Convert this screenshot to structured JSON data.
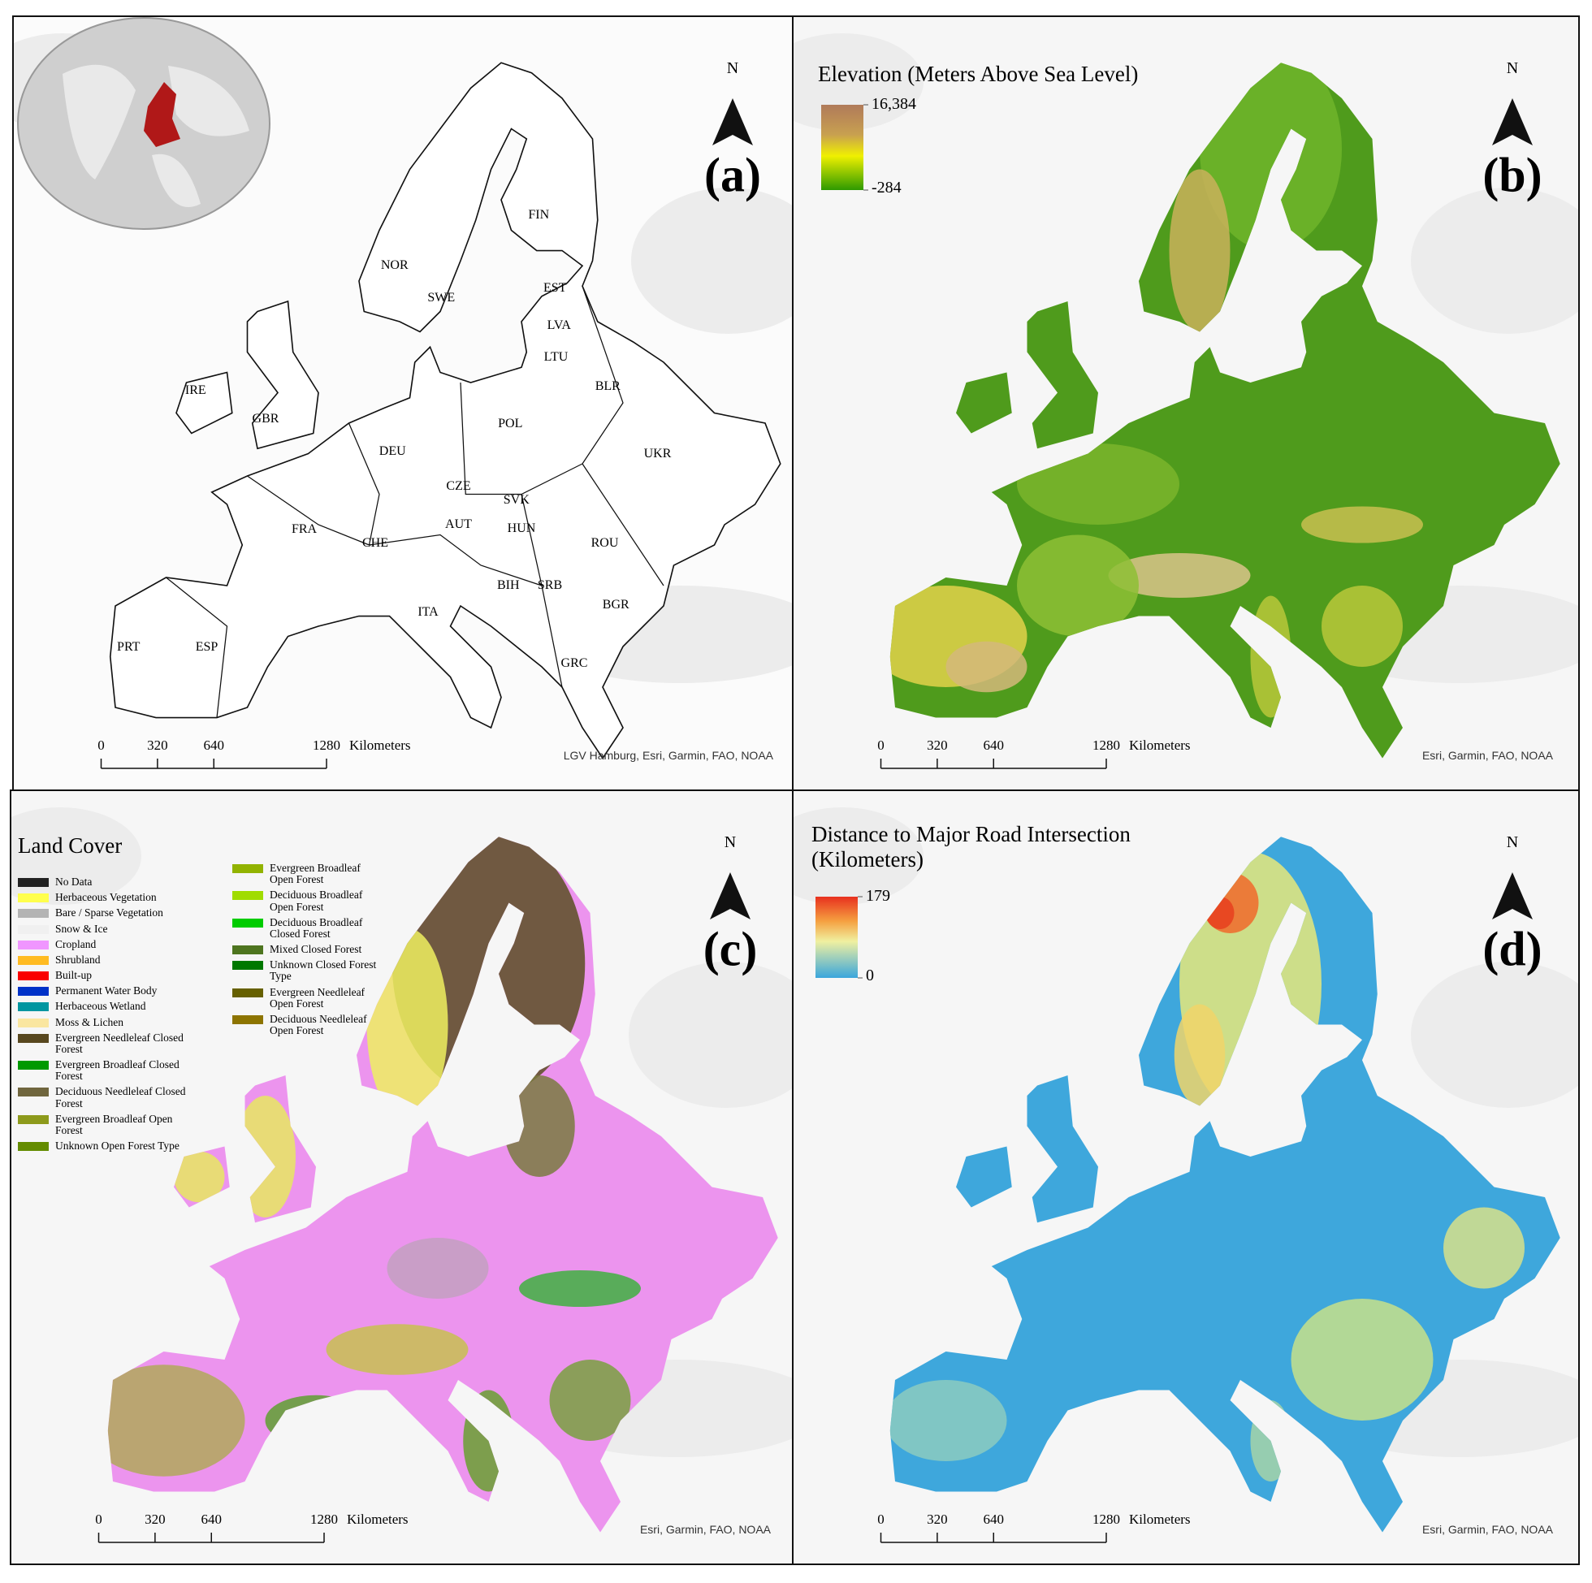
{
  "panels": [
    {
      "label": "(a)",
      "north": "N",
      "attribution": "LGV Hamburg, Esri, Garmin, FAO, NOAA",
      "scale_bar": {
        "ticks": [
          0,
          320,
          640,
          1280
        ],
        "unit": "Kilometers"
      },
      "countries": [
        "FIN",
        "NOR",
        "SWE",
        "EST",
        "LVA",
        "LTU",
        "BLR",
        "IRE",
        "GBR",
        "POL",
        "DEU",
        "UKR",
        "CZE",
        "SVK",
        "FRA",
        "AUT",
        "HUN",
        "CHE",
        "ROU",
        "BIH",
        "SRB",
        "BGR",
        "ITA",
        "PRT",
        "ESP",
        "GRC"
      ]
    },
    {
      "label": "(b)",
      "north": "N",
      "attribution": "Esri, Garmin, FAO, NOAA",
      "scale_bar": {
        "ticks": [
          0,
          320,
          640,
          1280
        ],
        "unit": "Kilometers"
      },
      "legend": {
        "title": "Elevation (Meters Above Sea Level)",
        "max": {
          "value": 16384,
          "label": "16,384"
        },
        "min": -284
      }
    },
    {
      "label": "(c)",
      "north": "N",
      "attribution": "Esri, Garmin, FAO, NOAA",
      "scale_bar": {
        "ticks": [
          0,
          320,
          640,
          1280
        ],
        "unit": "Kilometers"
      },
      "legend": {
        "title": "Land Cover",
        "items": [
          {
            "name": "No Data",
            "color": "#222222"
          },
          {
            "name": "Herbaceous Vegetation",
            "color": "#ffff4c"
          },
          {
            "name": "Bare / Sparse Vegetation",
            "color": "#b4b4b4"
          },
          {
            "name": "Snow & Ice",
            "color": "#f0f0f0"
          },
          {
            "name": "Cropland",
            "color": "#f096ff"
          },
          {
            "name": "Shrubland",
            "color": "#ffbb22"
          },
          {
            "name": "Built-up",
            "color": "#fa0000"
          },
          {
            "name": "Permanent Water Body",
            "color": "#0032c8"
          },
          {
            "name": "Herbaceous Wetland",
            "color": "#0096a0"
          },
          {
            "name": "Moss & Lichen",
            "color": "#fae6a0"
          },
          {
            "name": "Evergreen Needleleaf Closed Forest",
            "color": "#58481f"
          },
          {
            "name": "Evergreen Broadleaf Closed Forest",
            "color": "#009900"
          },
          {
            "name": "Deciduous Needleleaf Closed Forest",
            "color": "#70663e"
          },
          {
            "name": "Evergreen Broadleaf Open Forest",
            "color": "#8d9a1b"
          },
          {
            "name": "Unknown Open Forest Type",
            "color": "#648c00"
          },
          {
            "name": "Evergreen Broadleaf Open Forest",
            "color": "#92b300"
          },
          {
            "name": "Deciduous Broadleaf Open Forest",
            "color": "#a0dc00"
          },
          {
            "name": "Deciduous Broadleaf Closed Forest",
            "color": "#00cc00"
          },
          {
            "name": "Mixed Closed Forest",
            "color": "#4e751f"
          },
          {
            "name": "Unknown Closed Forest Type",
            "color": "#007800"
          },
          {
            "name": "Evergreen Needleleaf Open Forest",
            "color": "#666000"
          },
          {
            "name": "Deciduous Needleleaf Open Forest",
            "color": "#8d7400"
          }
        ]
      }
    },
    {
      "label": "(d)",
      "north": "N",
      "attribution": "Esri, Garmin, FAO, NOAA",
      "scale_bar": {
        "ticks": [
          0,
          320,
          640,
          1280
        ],
        "unit": "Kilometers"
      },
      "legend": {
        "title": "Distance to Major Road Intersection (Kilometers)",
        "max": 179,
        "min": 0
      }
    }
  ]
}
